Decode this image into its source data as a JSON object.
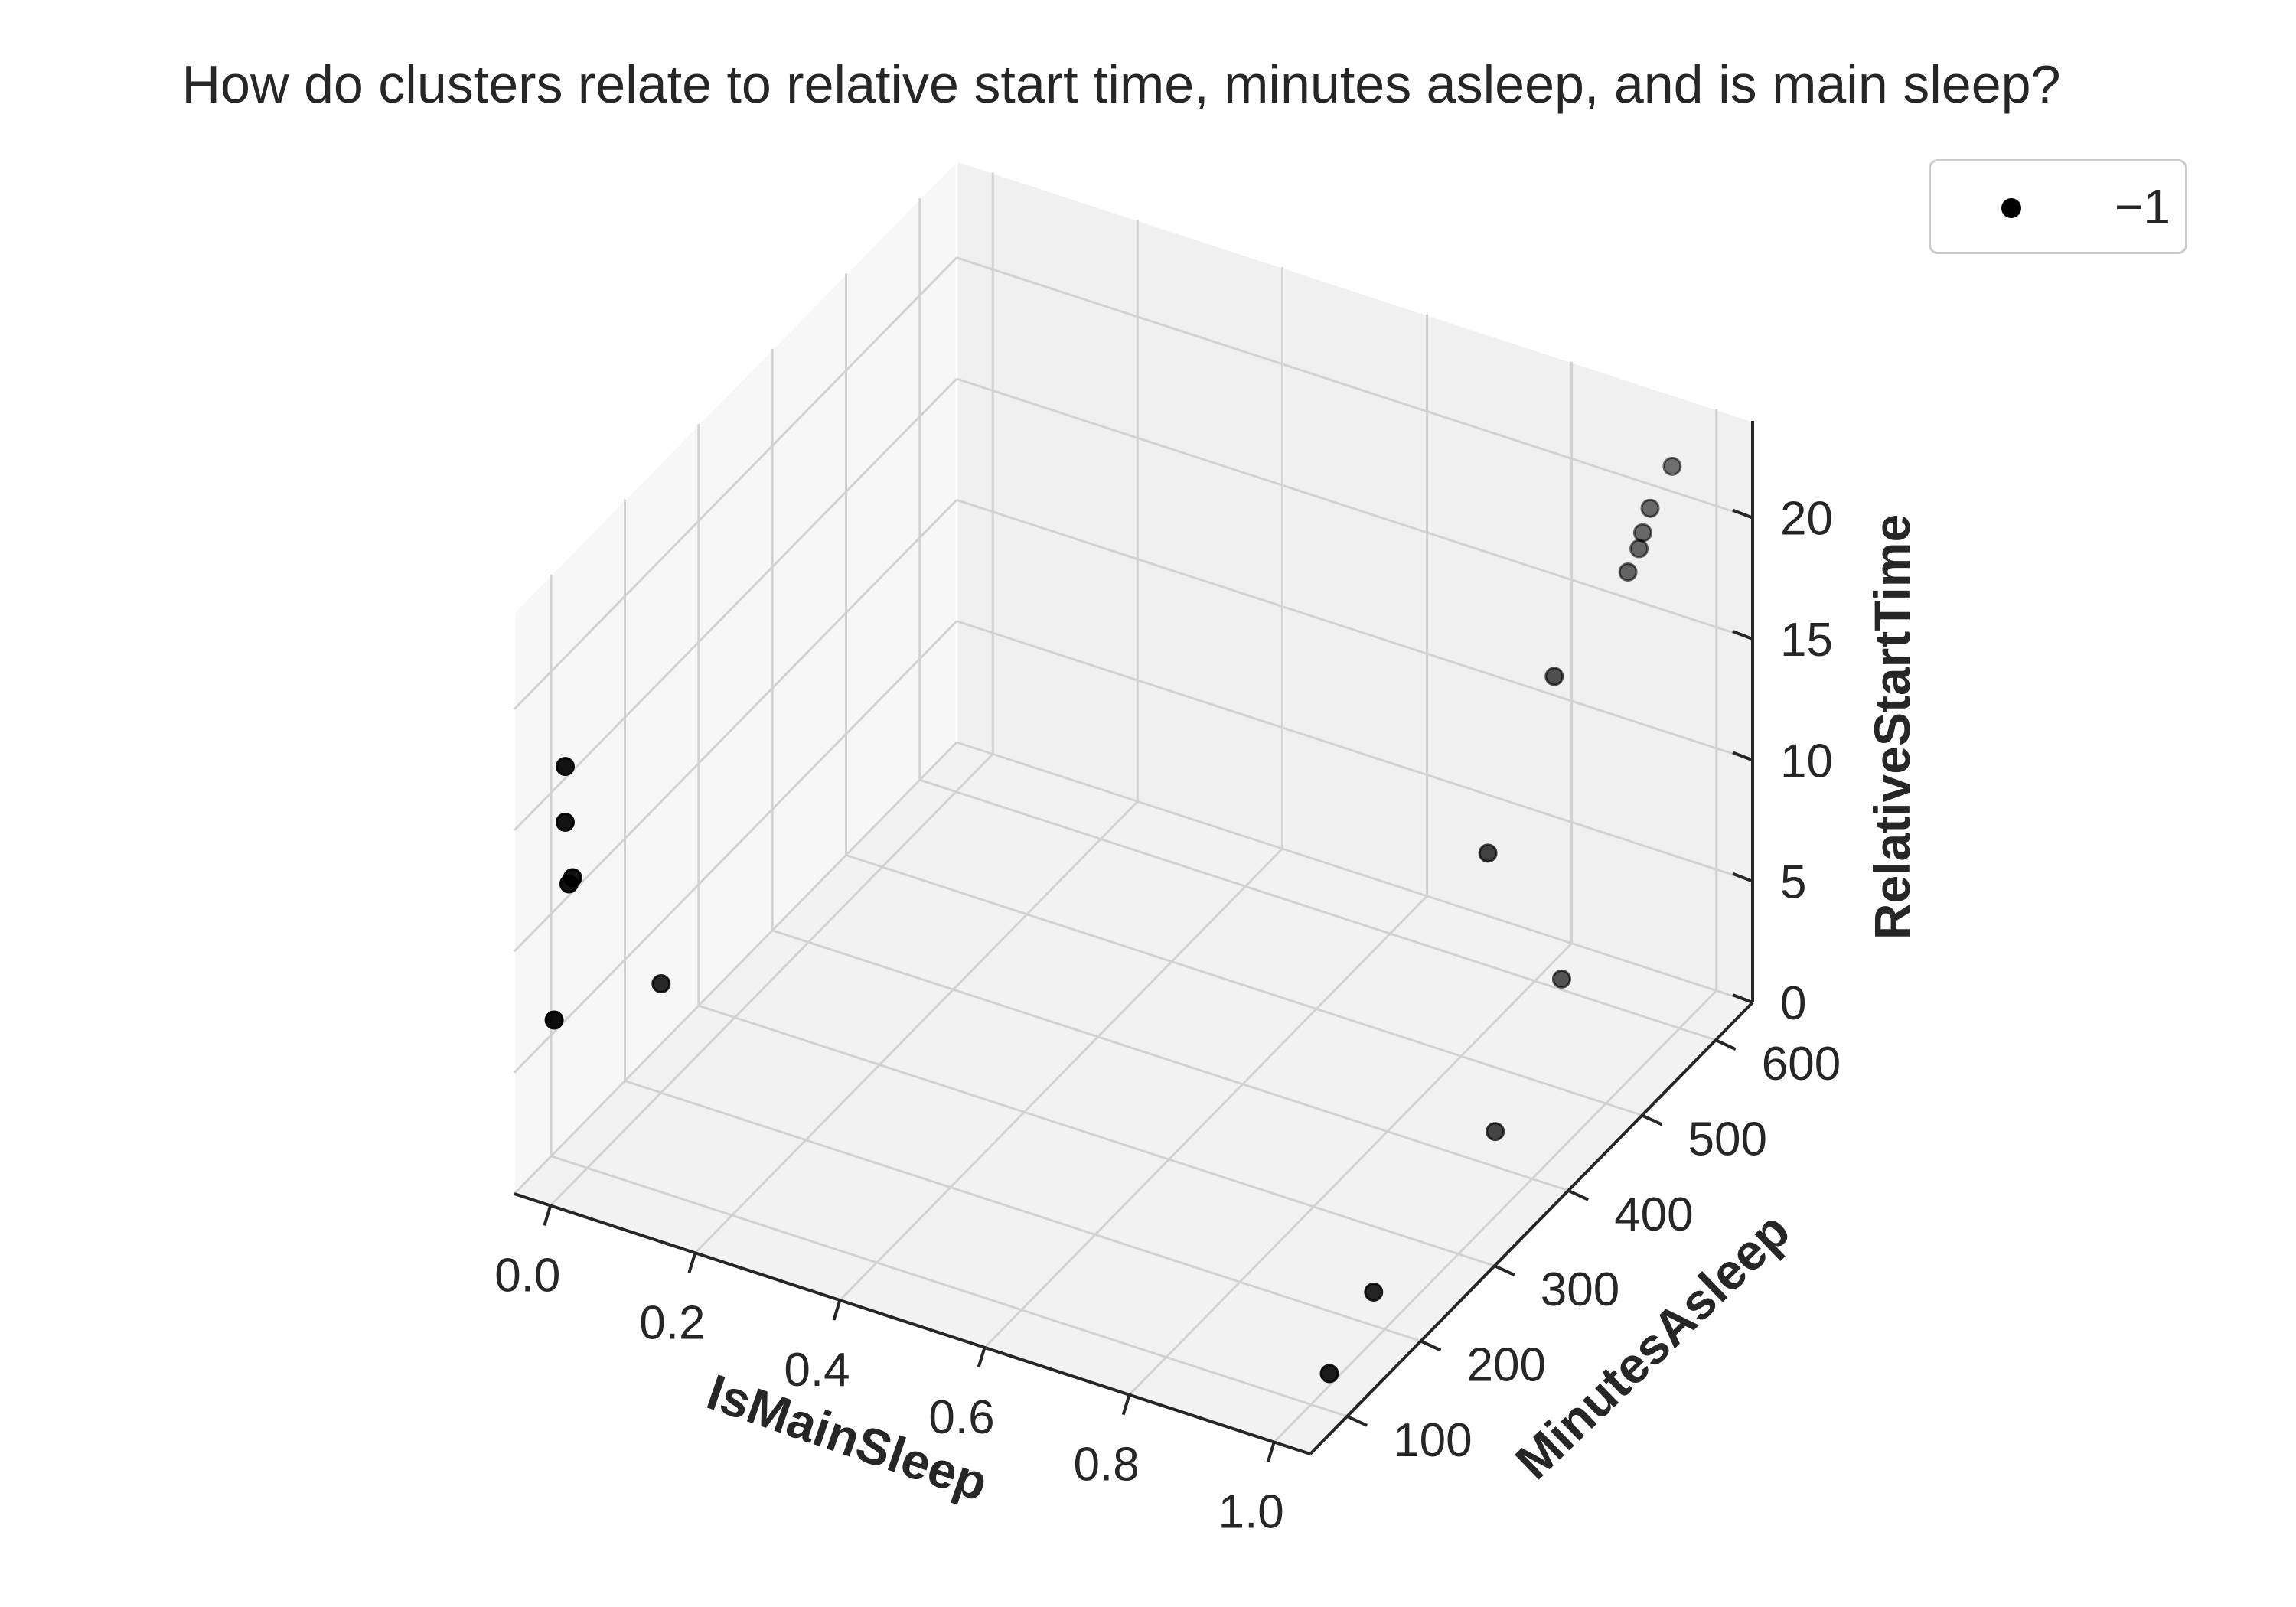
{
  "chart_data": {
    "type": "scatter",
    "projection": "3d",
    "title": "How do clusters relate to relative start time, minutes asleep, and is main sleep?",
    "xlabel": "IsMainSleep",
    "ylabel": "MinutesAsleep",
    "zlabel": "RelativeStartTime",
    "xlim": [
      -0.05,
      1.05
    ],
    "ylim": [
      50,
      650
    ],
    "zlim": [
      0,
      24
    ],
    "xticks": [
      "0.0",
      "0.2",
      "0.4",
      "0.6",
      "0.8",
      "1.0"
    ],
    "yticks": [
      "100",
      "200",
      "300",
      "400",
      "500",
      "600"
    ],
    "zticks": [
      "0",
      "5",
      "10",
      "15",
      "20"
    ],
    "grid": true,
    "legend_position": "top-right",
    "legend": [
      {
        "label": "−1",
        "color": "#000000"
      }
    ],
    "series": [
      {
        "name": "−1",
        "color": "#000000",
        "points": [
          {
            "x": 0,
            "y": 70,
            "z": 17.5
          },
          {
            "x": 0,
            "y": 70,
            "z": 15.2
          },
          {
            "x": 0,
            "y": 80,
            "z": 12.6
          },
          {
            "x": 0,
            "y": 75,
            "z": 12.5
          },
          {
            "x": 0,
            "y": 55,
            "z": 7.5
          },
          {
            "x": 0,
            "y": 200,
            "z": 4.5
          },
          {
            "x": 1,
            "y": 590,
            "z": 23.5
          },
          {
            "x": 1,
            "y": 560,
            "z": 22.7
          },
          {
            "x": 1,
            "y": 550,
            "z": 22.0
          },
          {
            "x": 1,
            "y": 545,
            "z": 21.5
          },
          {
            "x": 1,
            "y": 530,
            "z": 21.0
          },
          {
            "x": 1,
            "y": 430,
            "z": 19.8
          },
          {
            "x": 1,
            "y": 340,
            "z": 15.3
          },
          {
            "x": 1,
            "y": 440,
            "z": 7.0
          },
          {
            "x": 1,
            "y": 350,
            "z": 3.5
          },
          {
            "x": 1,
            "y": 185,
            "z": 2.0
          },
          {
            "x": 1,
            "y": 125,
            "z": 0.5
          }
        ]
      }
    ]
  }
}
